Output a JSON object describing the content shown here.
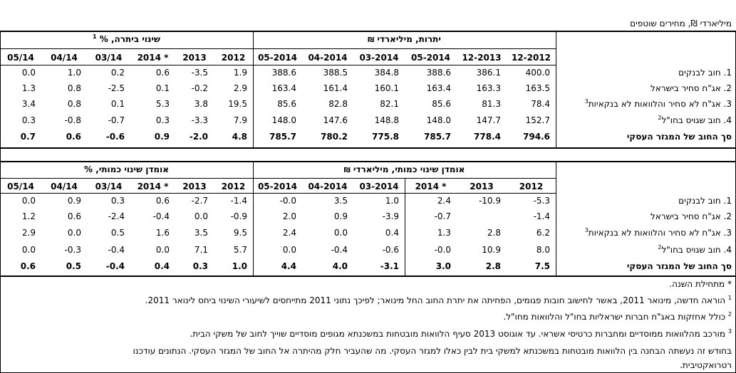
{
  "caption": "מיליארדי ₪, מחירים שוטפים",
  "table1": {
    "group_balances": "יתרות, מיליארדי ₪",
    "group_change": "שינוי ביתרה, %",
    "group_change_sup": "1",
    "balance_cols": [
      "12-2012",
      "12-2013",
      "05-2014",
      "03-2014",
      "04-2014",
      "05-2014"
    ],
    "change_cols": [
      "2012",
      "2013",
      "2014 *",
      "03/14",
      "04/14",
      "05/14"
    ],
    "rows": [
      {
        "label": "1. חוב לבנקים",
        "sup": "",
        "balances": [
          "400.0",
          "386.1",
          "388.6",
          "384.8",
          "388.5",
          "388.6"
        ],
        "changes": [
          "1.9",
          "-3.5",
          "0.6",
          "0.2",
          "1.0",
          "0.0"
        ]
      },
      {
        "label": "2. אג\"ח סחיר בישראל",
        "sup": "",
        "balances": [
          "163.5",
          "163.3",
          "163.4",
          "160.1",
          "161.4",
          "163.4"
        ],
        "changes": [
          "2.9",
          "-0.2",
          "0.1",
          "-2.5",
          "0.8",
          "1.3"
        ]
      },
      {
        "label": "3. אג\"ח לא סחיר והלוואות לא בנקאיות",
        "sup": "3",
        "balances": [
          "78.4",
          "81.3",
          "85.6",
          "82.1",
          "82.8",
          "85.6"
        ],
        "changes": [
          "19.5",
          "3.8",
          "5.3",
          "0.1",
          "0.8",
          "3.4"
        ]
      },
      {
        "label": "4. חוב שגויס בחו\"ל",
        "sup": "2",
        "balances": [
          "152.7",
          "147.7",
          "148.0",
          "148.8",
          "147.6",
          "148.0"
        ],
        "changes": [
          "7.9",
          "-3.3",
          "0.3",
          "-0.7",
          "-0.8",
          "0.3"
        ]
      },
      {
        "label": "סך החוב של המגזר העסקי",
        "sup": "",
        "balances": [
          "794.6",
          "778.4",
          "785.7",
          "775.8",
          "780.2",
          "785.7"
        ],
        "changes": [
          "4.8",
          "-2.0",
          "0.9",
          "-0.6",
          "0.6",
          "0.7"
        ]
      }
    ]
  },
  "table2": {
    "group_estimate": "אומדן שינוי כמותי, מיליארדי ₪",
    "group_percent": "אומדן שינוי כמותי, %",
    "estimate_cols": [
      "2012",
      "2013",
      "2014 *",
      "03-2014",
      "04-2014",
      "05-2014"
    ],
    "percent_cols": [
      "2012",
      "2013",
      "2014 *",
      "03/14",
      "04/14",
      "05/14"
    ],
    "rows": [
      {
        "label": "1. חוב לבנקים",
        "sup": "",
        "estimates": [
          "-5.3",
          "-10.9",
          "2.4",
          "1.0",
          "3.5",
          "-0.0"
        ],
        "percents": [
          "-1.4",
          "-2.7",
          "0.6",
          "0.3",
          "0.9",
          "0.0"
        ]
      },
      {
        "label": "2. אג\"ח סחיר בישראל",
        "sup": "",
        "estimates": [
          "-1.4",
          "",
          "-0.7",
          "-3.9",
          "0.9",
          "2.0"
        ],
        "percents": [
          "-0.9",
          "0.0",
          "-0.4",
          "-2.4",
          "0.6",
          "1.2"
        ]
      },
      {
        "label": "3. אג\"ח לא סחיר והלוואות לא בנקאיות",
        "sup": "3",
        "estimates": [
          "6.2",
          "2.8",
          "1.3",
          "0.4",
          "0.0",
          "2.4"
        ],
        "percents": [
          "9.5",
          "3.5",
          "1.6",
          "0.5",
          "0.0",
          "2.9"
        ]
      },
      {
        "label": "4. חוב שגויס בחו\"ל",
        "sup": "2",
        "estimates": [
          "8.0",
          "10.9",
          "-0.0",
          "-0.6",
          "-0.4",
          "0.0"
        ],
        "percents": [
          "5.7",
          "7.1",
          "0.0",
          "-0.4",
          "-0.3",
          "0.0"
        ]
      },
      {
        "label": "סך החוב של המגזר העסקי",
        "sup": "",
        "estimates": [
          "7.5",
          "2.8",
          "3.0",
          "-3.1",
          "4.0",
          "4.4"
        ],
        "percents": [
          "1.0",
          "0.3",
          "0.4",
          "-0.4",
          "0.5",
          "0.6"
        ]
      }
    ]
  },
  "notes": [
    {
      "sup": "",
      "text": "* מתחילת השנה."
    },
    {
      "sup": "1",
      "text": "הוראה חדשה, מינואר 2011, באשר לחישוב חובות פגומים, הפחיתה את יתרת החוב החל מינואר; לפיכך נתוני 2011 מתייחסים לשיעורי השינוי ביחס לינואר 2011."
    },
    {
      "sup": "2",
      "text": "כולל אחזקות באג\"ח חברות ישראליות בחו\"ל והלוואות מחו\"ל."
    },
    {
      "sup": "3",
      "text": "מורכב מהלוואות ממוסדיים ומחברות כרטיסי אשראי. עד אוגוסט 2013 סעיף הלוואות מובטחות במשכנתא מגופים מוסדיים שוייך לחוב של משקי הבית."
    },
    {
      "sup": "",
      "text": "בחודש זה נעשתה הבחנה בין הלוואות מובטחות במשכנתא למשקי בית לבין כאלו למגזר העסקי. מה שהעביר חלק מהיתרה אל החוב של המגזר העסקי. הנתונים עודכנו"
    },
    {
      "sup": "",
      "text": "רטרואקטיבית."
    }
  ]
}
